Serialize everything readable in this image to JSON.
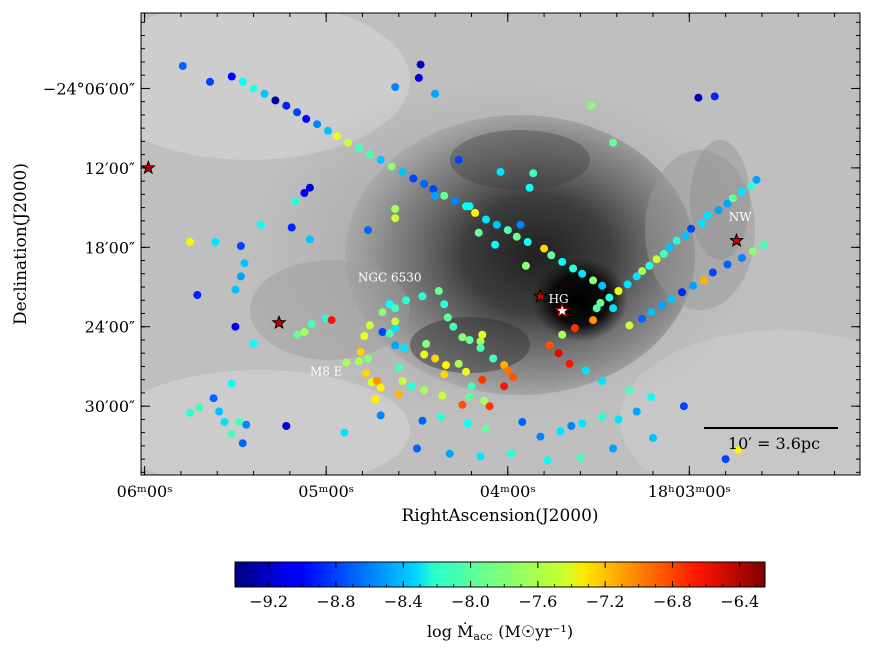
{
  "chart_data": {
    "type": "scatter",
    "x_axis": {
      "label": "RightAscension(J2000)",
      "ticks": [
        {
          "ra_min": 6.0,
          "label": "06ᵐ00ˢ"
        },
        {
          "ra_min": 5.0,
          "label": "05ᵐ00ˢ"
        },
        {
          "ra_min": 4.0,
          "label": "04ᵐ00ˢ"
        },
        {
          "ra_min": 3.0,
          "label": "18ʰ03ᵐ00ˢ"
        }
      ],
      "range_ra_min": [
        6.02,
        2.06
      ],
      "direction": "decreasing-to-right"
    },
    "y_axis": {
      "label": "Declination(J2000)",
      "ticks": [
        {
          "dec_min": 6,
          "label": "−24°06′00″"
        },
        {
          "dec_min": 12,
          "label": "12′00″"
        },
        {
          "dec_min": 18,
          "label": "18′00″"
        },
        {
          "dec_min": 24,
          "label": "24′00″"
        },
        {
          "dec_min": 30,
          "label": "30′00″"
        }
      ],
      "range_dec_min": [
        0.3,
        35.2
      ],
      "direction": "increasing-downward"
    },
    "colorbar": {
      "label": "log Ṁ",
      "label_sub": "acc",
      "unit": "(M☉yr⁻¹)",
      "range": [
        -9.4,
        -6.25
      ],
      "tick_values": [
        -9.2,
        -8.8,
        -8.4,
        -8.0,
        -7.6,
        -7.2,
        -6.8,
        -6.4
      ],
      "tick_labels": [
        "−9.2",
        "−8.8",
        "−8.4",
        "−8.0",
        "−7.6",
        "−7.2",
        "−6.8",
        "−6.4"
      ],
      "colormap": "jet"
    },
    "annotations": [
      {
        "text": "NGC 6530",
        "ra_min": 4.65,
        "dec_min": 20.6
      },
      {
        "text": "HG",
        "ra_min": 3.72,
        "dec_min": 22.2
      },
      {
        "text": "NW",
        "ra_min": 2.72,
        "dec_min": 16.0
      },
      {
        "text": "M8 E",
        "ra_min": 5.0,
        "dec_min": 27.7
      }
    ],
    "scale_bar": {
      "label": "10′ = 3.6pc",
      "length_arcmin": 10
    },
    "stars": [
      {
        "ra_min": 5.98,
        "dec_min": 12.0,
        "logM": -6.5
      },
      {
        "ra_min": 5.26,
        "dec_min": 23.7,
        "logM": -6.5
      },
      {
        "ra_min": 3.82,
        "dec_min": 21.7,
        "logM": -6.7
      },
      {
        "ra_min": 3.7,
        "dec_min": 22.8,
        "logM": null
      },
      {
        "ra_min": 2.74,
        "dec_min": 17.5,
        "logM": -6.5
      }
    ],
    "points_format": [
      "ra_min",
      "dec_min",
      "log_Macc"
    ],
    "points": [
      [
        5.75,
        17.6,
        -7.4
      ],
      [
        5.61,
        17.6,
        -8.3
      ],
      [
        5.47,
        17.9,
        -8.8
      ],
      [
        5.47,
        20.2,
        -8.5
      ],
      [
        5.45,
        19.2,
        -8.4
      ],
      [
        5.5,
        21.2,
        -8.4
      ],
      [
        5.71,
        21.6,
        -8.9
      ],
      [
        5.17,
        14.5,
        -8.1
      ],
      [
        5.19,
        16.5,
        -8.9
      ],
      [
        5.09,
        17.4,
        -8.4
      ],
      [
        5.09,
        13.5,
        -9.1
      ],
      [
        5.12,
        13.9,
        -9.0
      ],
      [
        5.0,
        23.4,
        -8.1
      ],
      [
        4.97,
        23.5,
        -6.7
      ],
      [
        5.08,
        23.8,
        -8.0
      ],
      [
        5.12,
        24.4,
        -7.7
      ],
      [
        5.16,
        24.6,
        -7.9
      ],
      [
        4.76,
        23.9,
        -7.6
      ],
      [
        4.79,
        24.7,
        -7.5
      ],
      [
        4.81,
        25.9,
        -7.3
      ],
      [
        4.89,
        26.7,
        -7.7
      ],
      [
        4.82,
        26.6,
        -7.7
      ],
      [
        4.78,
        27.5,
        -7.3
      ],
      [
        4.77,
        26.4,
        -7.8
      ],
      [
        4.75,
        28.2,
        -7.5
      ],
      [
        4.72,
        28.1,
        -7.1
      ],
      [
        4.7,
        28.6,
        -7.4
      ],
      [
        4.73,
        29.5,
        -7.4
      ],
      [
        4.7,
        30.7,
        -8.6
      ],
      [
        4.6,
        27.1,
        -8.0
      ],
      [
        4.58,
        28.1,
        -7.6
      ],
      [
        4.57,
        25.6,
        -8.3
      ],
      [
        4.62,
        25.4,
        -8.5
      ],
      [
        4.69,
        24.4,
        -8.8
      ],
      [
        4.65,
        24.5,
        -8.0
      ],
      [
        4.62,
        24.1,
        -8.3
      ],
      [
        4.62,
        23.6,
        -7.6
      ],
      [
        4.69,
        22.9,
        -7.8
      ],
      [
        4.65,
        22.3,
        -8.2
      ],
      [
        4.62,
        22.6,
        -8.0
      ],
      [
        4.56,
        22.0,
        -8.1
      ],
      [
        4.47,
        21.7,
        -8.1
      ],
      [
        4.38,
        21.3,
        -7.9
      ],
      [
        4.35,
        22.3,
        -8.1
      ],
      [
        4.33,
        23.3,
        -7.9
      ],
      [
        4.3,
        24.0,
        -8.0
      ],
      [
        4.25,
        24.8,
        -7.8
      ],
      [
        4.21,
        25.0,
        -7.9
      ],
      [
        4.15,
        25.1,
        -7.7
      ],
      [
        4.14,
        24.6,
        -7.5
      ],
      [
        4.15,
        25.6,
        -8.0
      ],
      [
        4.08,
        26.4,
        -8.0
      ],
      [
        4.02,
        26.9,
        -7.2
      ],
      [
        4.0,
        27.3,
        -7.0
      ],
      [
        3.97,
        27.8,
        -6.9
      ],
      [
        4.45,
        25.3,
        -7.8
      ],
      [
        4.46,
        26.1,
        -7.5
      ],
      [
        4.4,
        26.4,
        -7.3
      ],
      [
        4.34,
        26.9,
        -7.4
      ],
      [
        4.35,
        27.6,
        -7.3
      ],
      [
        4.27,
        26.8,
        -7.7
      ],
      [
        4.23,
        27.4,
        -7.5
      ],
      [
        4.14,
        28.0,
        -6.8
      ],
      [
        4.02,
        28.5,
        -6.7
      ],
      [
        4.2,
        28.5,
        -8.0
      ],
      [
        4.21,
        29.3,
        -7.9
      ],
      [
        4.13,
        29.6,
        -7.7
      ],
      [
        4.1,
        30.0,
        -6.8
      ],
      [
        4.25,
        29.9,
        -6.9
      ],
      [
        4.36,
        29.2,
        -7.6
      ],
      [
        4.46,
        28.8,
        -7.7
      ],
      [
        4.53,
        28.5,
        -8.1
      ],
      [
        4.6,
        29.1,
        -7.2
      ],
      [
        4.47,
        31.1,
        -8.7
      ],
      [
        4.37,
        30.8,
        -8.1
      ],
      [
        4.22,
        31.3,
        -8.2
      ],
      [
        4.12,
        31.7,
        -7.9
      ],
      [
        3.92,
        31.2,
        -8.7
      ],
      [
        3.82,
        32.3,
        -8.6
      ],
      [
        3.71,
        31.9,
        -8.3
      ],
      [
        3.65,
        31.5,
        -8.6
      ],
      [
        3.59,
        31.3,
        -8.3
      ],
      [
        3.48,
        30.8,
        -8.1
      ],
      [
        3.39,
        31.0,
        -8.3
      ],
      [
        3.29,
        30.4,
        -8.5
      ],
      [
        3.03,
        30.0,
        -8.8
      ],
      [
        3.21,
        29.3,
        -8.2
      ],
      [
        3.33,
        28.8,
        -8.0
      ],
      [
        3.48,
        28.1,
        -8.3
      ],
      [
        3.57,
        27.3,
        -8.3
      ],
      [
        3.66,
        26.8,
        -6.7
      ],
      [
        3.72,
        26.0,
        -6.6
      ],
      [
        3.77,
        25.4,
        -6.9
      ],
      [
        3.7,
        24.6,
        -7.7
      ],
      [
        3.63,
        24.1,
        -6.8
      ],
      [
        3.53,
        23.5,
        -7.1
      ],
      [
        3.51,
        22.6,
        -8.0
      ],
      [
        3.49,
        22.2,
        -7.9
      ],
      [
        3.44,
        21.8,
        -8.1
      ],
      [
        3.39,
        21.3,
        -7.5
      ],
      [
        3.34,
        20.8,
        -8.3
      ],
      [
        3.29,
        20.2,
        -8.3
      ],
      [
        3.26,
        19.8,
        -7.7
      ],
      [
        3.22,
        19.4,
        -8.1
      ],
      [
        3.18,
        18.9,
        -7.6
      ],
      [
        3.14,
        18.5,
        -8.0
      ],
      [
        3.11,
        18.0,
        -8.4
      ],
      [
        3.07,
        17.5,
        -8.1
      ],
      [
        3.02,
        17.1,
        -8.4
      ],
      [
        2.99,
        16.6,
        -8.8
      ],
      [
        2.93,
        16.2,
        -8.3
      ],
      [
        2.9,
        15.6,
        -8.3
      ],
      [
        2.84,
        15.2,
        -8.5
      ],
      [
        2.79,
        14.7,
        -8.5
      ],
      [
        2.76,
        14.3,
        -7.9
      ],
      [
        2.71,
        13.8,
        -8.3
      ],
      [
        2.66,
        13.4,
        -8.1
      ],
      [
        2.63,
        12.9,
        -8.5
      ],
      [
        2.59,
        17.8,
        -8.0
      ],
      [
        2.65,
        18.3,
        -7.8
      ],
      [
        2.71,
        18.8,
        -8.6
      ],
      [
        2.79,
        19.3,
        -8.7
      ],
      [
        2.87,
        19.9,
        -8.8
      ],
      [
        2.92,
        20.5,
        -7.2
      ],
      [
        2.98,
        20.9,
        -8.5
      ],
      [
        3.04,
        21.4,
        -8.9
      ],
      [
        3.1,
        21.9,
        -8.4
      ],
      [
        3.15,
        22.4,
        -8.5
      ],
      [
        3.21,
        22.9,
        -8.4
      ],
      [
        3.26,
        23.4,
        -8.7
      ],
      [
        3.33,
        23.9,
        -7.6
      ],
      [
        3.42,
        22.6,
        -8.3
      ],
      [
        3.48,
        20.9,
        -8.4
      ],
      [
        3.53,
        20.5,
        -7.8
      ],
      [
        3.59,
        20.0,
        -8.3
      ],
      [
        3.64,
        19.6,
        -8.1
      ],
      [
        3.7,
        19.1,
        -8.2
      ],
      [
        3.76,
        18.6,
        -7.9
      ],
      [
        3.8,
        18.1,
        -7.3
      ],
      [
        3.89,
        17.6,
        -8.2
      ],
      [
        3.95,
        17.2,
        -7.9
      ],
      [
        4.0,
        16.7,
        -8.0
      ],
      [
        4.06,
        16.3,
        -8.4
      ],
      [
        4.12,
        15.9,
        -8.3
      ],
      [
        4.18,
        15.4,
        -7.4
      ],
      [
        4.23,
        14.9,
        -8.2
      ],
      [
        4.29,
        14.5,
        -8.6
      ],
      [
        4.35,
        14.1,
        -7.9
      ],
      [
        4.41,
        13.6,
        -8.8
      ],
      [
        4.46,
        13.2,
        -8.7
      ],
      [
        4.52,
        12.8,
        -8.8
      ],
      [
        4.58,
        12.3,
        -8.4
      ],
      [
        4.64,
        11.9,
        -7.8
      ],
      [
        4.7,
        11.4,
        -8.4
      ],
      [
        4.76,
        11.0,
        -8.0
      ],
      [
        4.82,
        10.5,
        -8.0
      ],
      [
        4.88,
        10.1,
        -7.6
      ],
      [
        4.94,
        9.6,
        -7.5
      ],
      [
        4.99,
        9.2,
        -8.4
      ],
      [
        5.05,
        8.7,
        -8.6
      ],
      [
        5.11,
        8.3,
        -9.0
      ],
      [
        5.16,
        7.8,
        -8.8
      ],
      [
        5.22,
        7.3,
        -8.9
      ],
      [
        5.28,
        6.9,
        -9.3
      ],
      [
        5.34,
        6.4,
        -8.4
      ],
      [
        5.4,
        6.0,
        -8.1
      ],
      [
        5.46,
        5.5,
        -8.2
      ],
      [
        5.52,
        5.1,
        -9.0
      ],
      [
        4.48,
        4.2,
        -9.2
      ],
      [
        4.49,
        5.2,
        -9.1
      ],
      [
        4.62,
        5.9,
        -8.6
      ],
      [
        4.4,
        6.4,
        -8.5
      ],
      [
        5.79,
        4.3,
        -8.7
      ],
      [
        5.64,
        5.5,
        -8.8
      ],
      [
        5.5,
        24.0,
        -9.1
      ],
      [
        5.4,
        25.3,
        -8.2
      ],
      [
        5.52,
        28.3,
        -8.2
      ],
      [
        5.62,
        29.4,
        -8.7
      ],
      [
        5.7,
        30.1,
        -8.0
      ],
      [
        5.75,
        30.5,
        -8.1
      ],
      [
        5.59,
        30.4,
        -8.4
      ],
      [
        5.56,
        31.2,
        -8.3
      ],
      [
        5.48,
        31.2,
        -8.0
      ],
      [
        5.44,
        31.4,
        -8.6
      ],
      [
        5.52,
        32.1,
        -8.0
      ],
      [
        5.46,
        32.8,
        -8.7
      ],
      [
        5.22,
        31.5,
        -9.1
      ],
      [
        4.9,
        32.0,
        -8.3
      ],
      [
        4.5,
        33.2,
        -8.7
      ],
      [
        4.32,
        33.6,
        -8.5
      ],
      [
        4.15,
        33.8,
        -8.3
      ],
      [
        3.98,
        33.6,
        -8.1
      ],
      [
        3.78,
        34.1,
        -8.2
      ],
      [
        3.6,
        33.9,
        -8.0
      ],
      [
        2.8,
        34.0,
        -8.8
      ],
      [
        2.73,
        33.3,
        -7.4
      ],
      [
        3.2,
        32.4,
        -8.4
      ],
      [
        3.42,
        33.2,
        -8.5
      ],
      [
        2.95,
        6.7,
        -9.2
      ],
      [
        2.86,
        6.6,
        -8.9
      ],
      [
        3.54,
        7.3,
        -7.8
      ],
      [
        3.42,
        10.1,
        -7.9
      ],
      [
        4.27,
        11.4,
        -8.8
      ],
      [
        4.04,
        12.3,
        -8.3
      ],
      [
        3.86,
        12.4,
        -8.0
      ],
      [
        3.88,
        13.5,
        -8.2
      ],
      [
        4.62,
        15.1,
        -7.7
      ],
      [
        4.77,
        16.7,
        -8.7
      ],
      [
        5.36,
        16.3,
        -8.2
      ],
      [
        4.62,
        15.8,
        -7.6
      ],
      [
        4.4,
        14.1,
        -8.5
      ],
      [
        4.21,
        14.9,
        -8.2
      ],
      [
        4.16,
        16.9,
        -7.9
      ],
      [
        4.07,
        17.8,
        -8.2
      ],
      [
        3.93,
        16.3,
        -8.6
      ],
      [
        3.9,
        19.4,
        -7.8
      ]
    ]
  }
}
